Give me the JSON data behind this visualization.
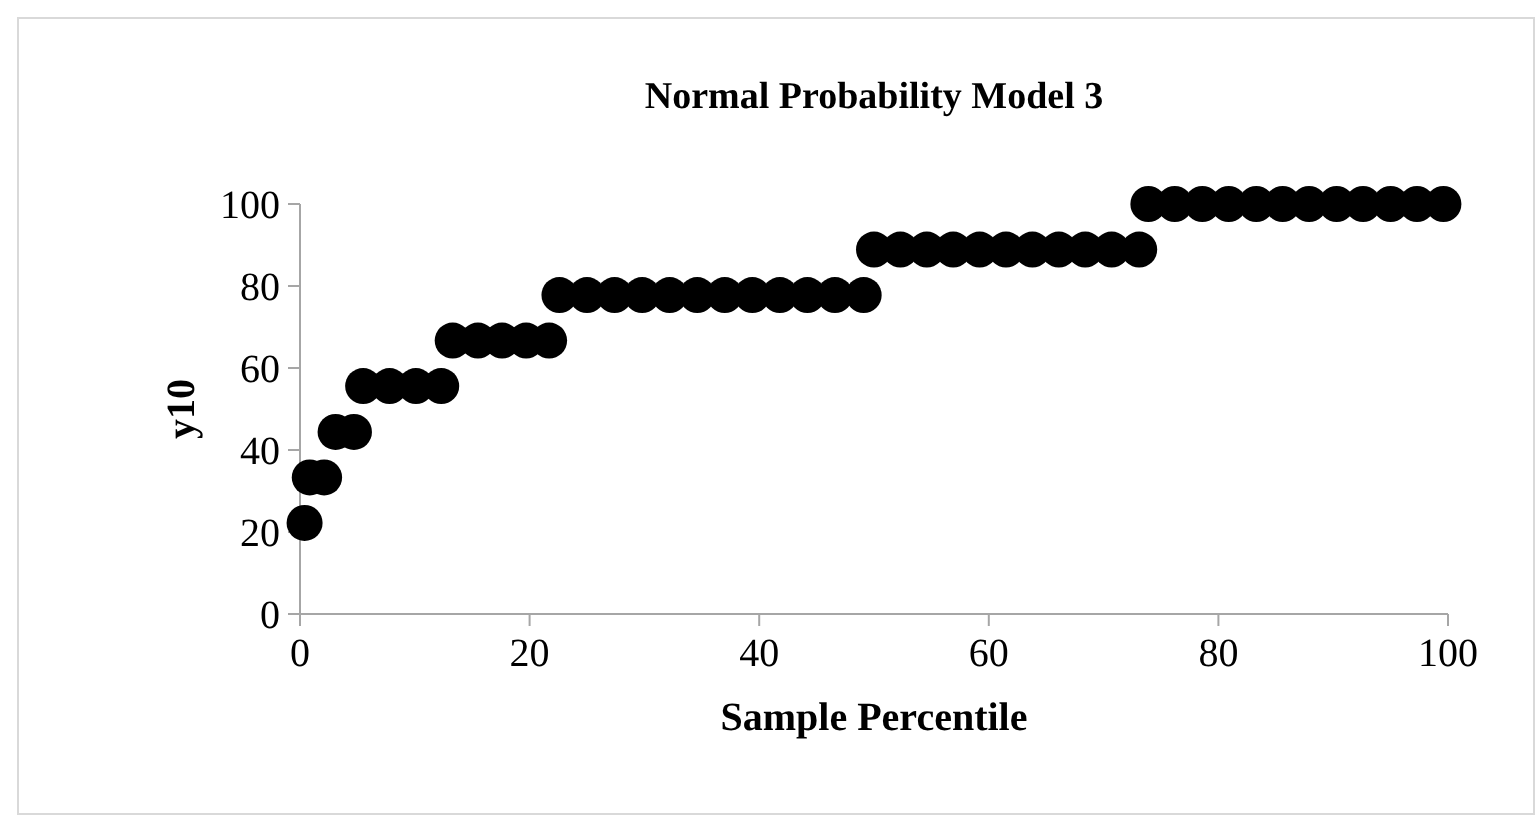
{
  "chart_data": {
    "type": "scatter",
    "title": "Normal Probability Model 3",
    "xlabel": "Sample Percentile",
    "ylabel": "y10",
    "x": [
      0.4,
      0.85,
      2.1,
      3.1,
      4.7,
      5.5,
      7.8,
      10.1,
      12.3,
      13.3,
      15.5,
      17.6,
      19.7,
      21.7,
      22.6,
      25,
      27.4,
      29.8,
      32.2,
      34.6,
      37,
      39.4,
      41.8,
      44.2,
      46.6,
      49.1,
      50,
      52.3,
      54.6,
      56.9,
      59.2,
      61.5,
      63.8,
      66.1,
      68.4,
      70.7,
      73.1,
      73.9,
      76.2,
      78.6,
      80.9,
      83.3,
      85.6,
      87.9,
      90.3,
      92.6,
      95,
      97.3,
      99.6
    ],
    "values": [
      22.2,
      33.3,
      33.3,
      44.4,
      44.4,
      55.6,
      55.6,
      55.6,
      55.6,
      66.7,
      66.7,
      66.7,
      66.7,
      66.7,
      77.8,
      77.8,
      77.8,
      77.8,
      77.8,
      77.8,
      77.8,
      77.8,
      77.8,
      77.8,
      77.8,
      77.8,
      88.9,
      88.9,
      88.9,
      88.9,
      88.9,
      88.9,
      88.9,
      88.9,
      88.9,
      88.9,
      88.9,
      100,
      100,
      100,
      100,
      100,
      100,
      100,
      100,
      100,
      100,
      100,
      100
    ],
    "color": "#000000",
    "marker": "circle",
    "xlim": [
      0,
      100
    ],
    "xticks": [
      0,
      20,
      40,
      60,
      80,
      100
    ],
    "ylim": [
      0,
      100
    ],
    "yticks": [
      0,
      20,
      40,
      60,
      80,
      100
    ],
    "grid": false
  }
}
